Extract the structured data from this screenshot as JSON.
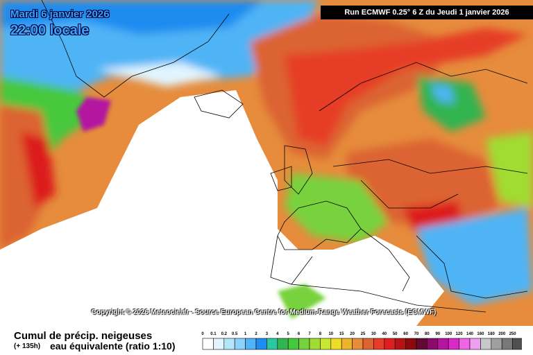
{
  "header": {
    "date": "Mardi 6 janvier 2026",
    "time": "22:00 locale",
    "run": "Run ECMWF 0.25° 6 Z du Jeudi 1 janvier 2026"
  },
  "copyright": "Copyright © 2026 Meteociel.fr - Source European Centre for Medium-Range Weather Forecasts (ECMWF)",
  "legend": {
    "title": "Cumul de précip. neigeuses",
    "lead": "(+ 135h)",
    "subtitle": "eau équivalente (ratio 1:10)",
    "labels": [
      "0",
      "0.1",
      "0.2",
      "0.5",
      "1",
      "2",
      "3",
      "4",
      "5",
      "6",
      "7",
      "8",
      "10",
      "15",
      "20",
      "25",
      "30",
      "40",
      "50",
      "60",
      "70",
      "80",
      "90",
      "100",
      "120",
      "140",
      "160",
      "180",
      "200",
      "250"
    ],
    "colors": [
      "#ffffff",
      "#e1f5ff",
      "#b4e6fa",
      "#8cd2fa",
      "#50b4f5",
      "#1e8cf0",
      "#28c8a0",
      "#32b450",
      "#46c83c",
      "#78d23c",
      "#a0dc32",
      "#c8e632",
      "#f0dc28",
      "#f0b428",
      "#e68c3c",
      "#dc6432",
      "#e63c28",
      "#dc1e1e",
      "#b41414",
      "#8c0a0a",
      "#640a32",
      "#8c0a6e",
      "#b414a0",
      "#dc28c8",
      "#f064e6",
      "#f0a0f0",
      "#c8c8c8",
      "#a0a0a0",
      "#787878",
      "#505050"
    ]
  }
}
